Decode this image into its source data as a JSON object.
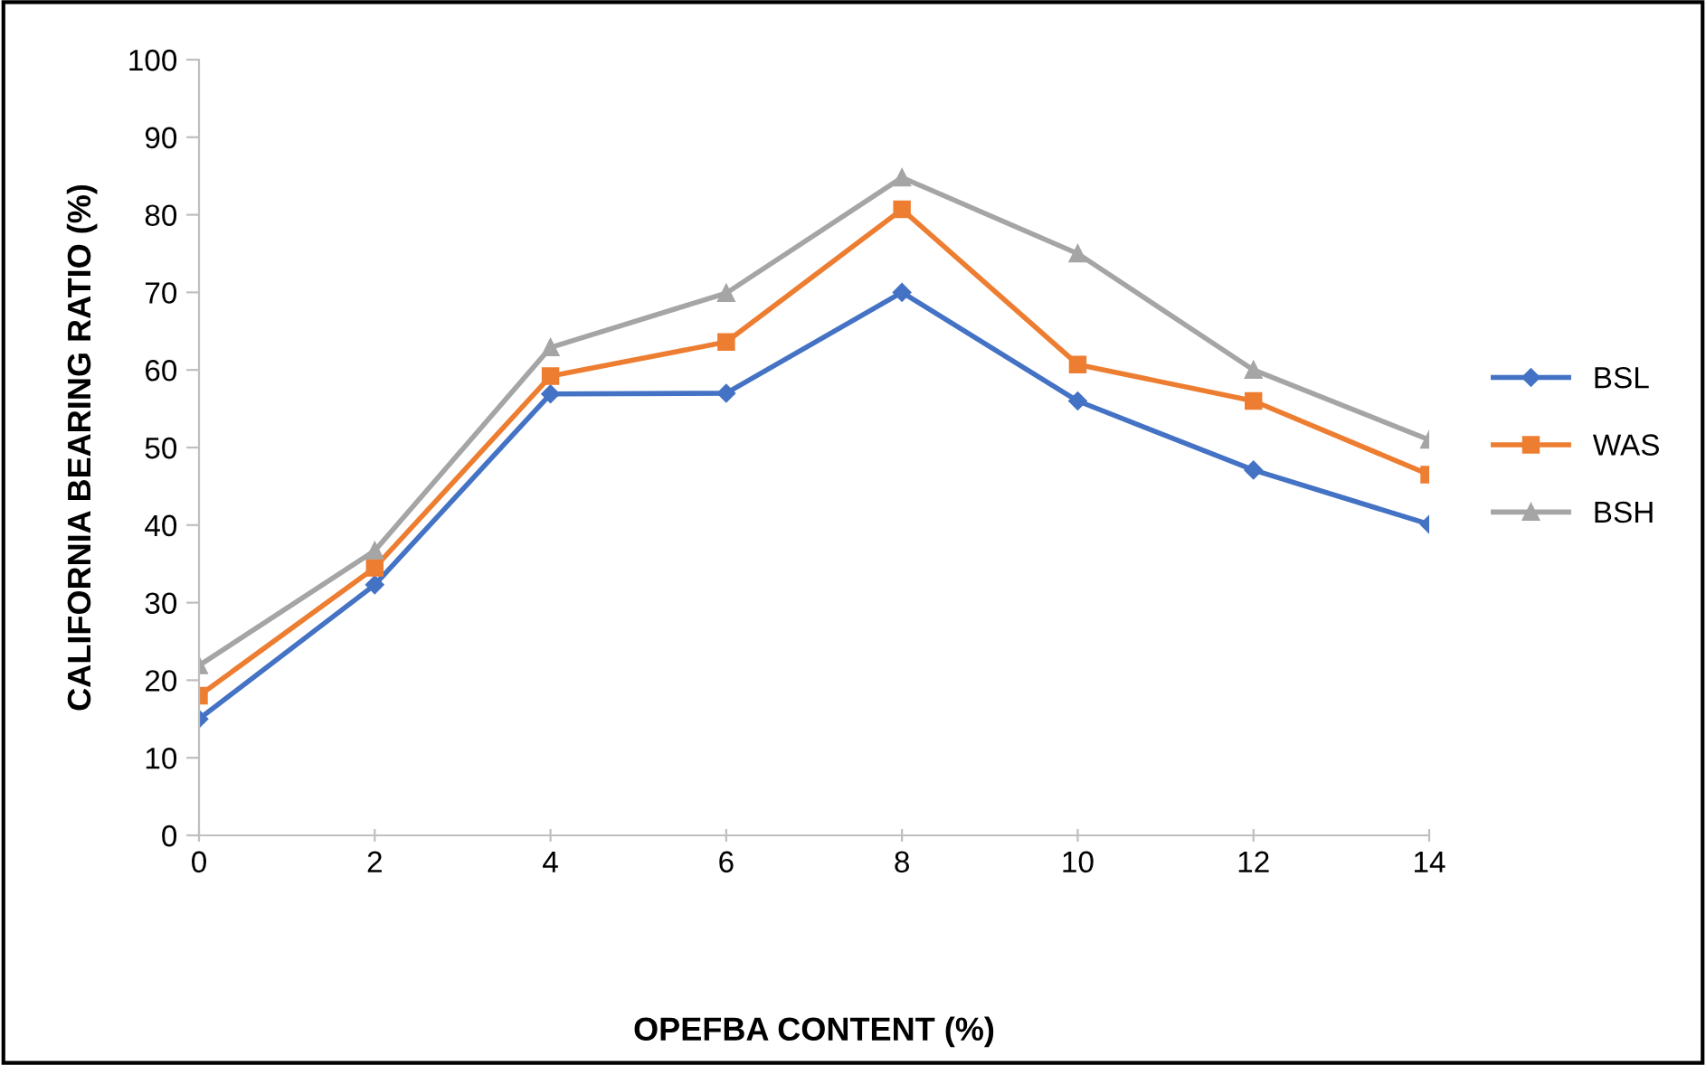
{
  "chart_data": {
    "type": "line",
    "xlabel": "OPEFBA CONTENT (%)",
    "ylabel": "CALIFORNIA BEARING RATIO (%)",
    "x": [
      0,
      2,
      4,
      6,
      8,
      10,
      12,
      14
    ],
    "xlim": [
      0,
      14
    ],
    "xticks": [
      0,
      2,
      4,
      6,
      8,
      10,
      12,
      14
    ],
    "ylim": [
      0,
      100
    ],
    "yticks": [
      0,
      10,
      20,
      30,
      40,
      50,
      60,
      70,
      80,
      90,
      100
    ],
    "grid": false,
    "legend": "right",
    "series": [
      {
        "name": "BSL",
        "color": "#4472c4",
        "marker": "diamond",
        "values": [
          15,
          32.3,
          56.9,
          57,
          70,
          56,
          47.1,
          40.1
        ]
      },
      {
        "name": "WAS",
        "color": "#ed7d31",
        "marker": "square",
        "values": [
          18,
          34.5,
          59.2,
          63.6,
          80.7,
          60.7,
          56,
          46.5
        ]
      },
      {
        "name": "BSH",
        "color": "#a5a5a5",
        "marker": "triangle",
        "values": [
          21.9,
          36.7,
          62.9,
          69.9,
          84.8,
          75,
          60,
          51
        ]
      }
    ]
  }
}
